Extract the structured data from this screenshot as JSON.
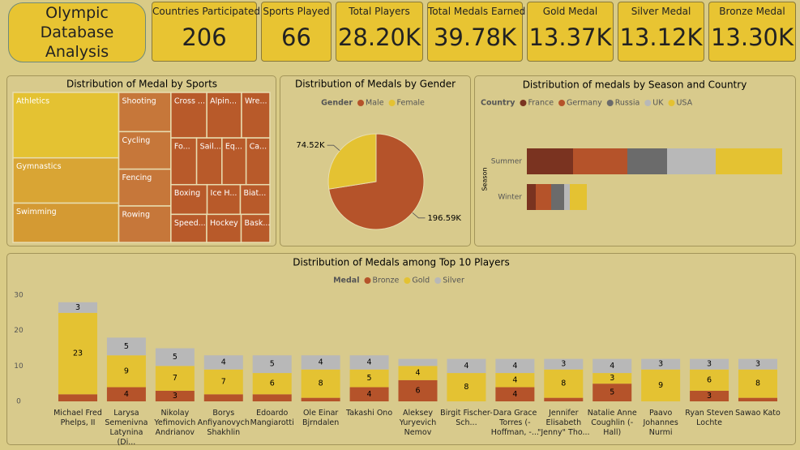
{
  "title": "Olympic Database Analysis",
  "cards": [
    {
      "label": "Countries Participated",
      "value": "206"
    },
    {
      "label": "Sports Played",
      "value": "66"
    },
    {
      "label": "Total Players",
      "value": "28.20K"
    },
    {
      "label": "Total Medals Earned",
      "value": "39.78K"
    },
    {
      "label": "Gold Medal",
      "value": "13.37K"
    },
    {
      "label": "Silver Medal",
      "value": "13.12K"
    },
    {
      "label": "Bronze Medal",
      "value": "13.30K"
    }
  ],
  "chart_data": [
    {
      "type": "treemap",
      "title": "Distribution of Medal by Sports",
      "color": "#b85a2a",
      "categories": [
        "Athletics",
        "Gymnastics",
        "Swimming",
        "Shooting",
        "Cycling",
        "Fencing",
        "Rowing",
        "Cross ...",
        "Alpin...",
        "Wre...",
        "Fo...",
        "Sail...",
        "Eq...",
        "Ca...",
        "Boxing",
        "Ice H...",
        "Biat...",
        "Speed...",
        "Hockey",
        "Bask..."
      ],
      "values": [
        38600,
        26700,
        23200,
        11400,
        10900,
        10700,
        10600,
        9100,
        8800,
        7200,
        6700,
        6600,
        6300,
        6200,
        6000,
        5500,
        4900,
        5600,
        5400,
        4500
      ],
      "colors": [
        "#e4c232",
        "#d9a534",
        "#d49a33",
        "#c6773a",
        "#c6773a",
        "#c6773a",
        "#c6773a",
        "#b85a2a",
        "#b85a2a",
        "#b85a2a",
        "#b85a2a",
        "#b85a2a",
        "#b85a2a",
        "#b85a2a",
        "#b85a2a",
        "#b85a2a",
        "#b85a2a",
        "#b85a2a",
        "#b85a2a",
        "#b85a2a"
      ]
    },
    {
      "type": "pie",
      "title": "Distribution of Medals by Gender",
      "legend_title": "Gender",
      "categories": [
        "Male",
        "Female"
      ],
      "values": [
        196590,
        74520
      ],
      "value_labels": [
        "196.59K",
        "74.52K"
      ],
      "colors": [
        "#b5532a",
        "#e4c232"
      ]
    },
    {
      "type": "hbar_stacked",
      "title": "Distribution of medals by Season and Country",
      "legend_title": "Country",
      "y_label": "Season",
      "categories": [
        "Summer",
        "Winter"
      ],
      "series": [
        {
          "name": "France",
          "color": "#7a3320",
          "values": [
            5700,
            1100
          ]
        },
        {
          "name": "Germany",
          "color": "#b5532a",
          "values": [
            6700,
            1900
          ]
        },
        {
          "name": "Russia",
          "color": "#6b6b6b",
          "values": [
            4900,
            1600
          ]
        },
        {
          "name": "UK",
          "color": "#b8b8b8",
          "values": [
            6000,
            700
          ]
        },
        {
          "name": "USA",
          "color": "#e4c232",
          "values": [
            8200,
            2100
          ]
        }
      ]
    },
    {
      "type": "bar_stacked",
      "title": "Distribution of Medals among Top 10 Players",
      "legend_title": "Medal",
      "categories": [
        "Michael Fred Phelps, II",
        "Larysa Semenivna Latynina (Di...",
        "Nikolay Yefimovich Andrianov",
        "Borys Anfiyanovych Shakhlin",
        "Edoardo Mangiarotti",
        "Ole Einar Bjrndalen",
        "Takashi Ono",
        "Aleksey Yuryevich Nemov",
        "Birgit Fischer-Sch...",
        "Dara Grace Torres (-Hoffman, -...",
        "Jennifer Elisabeth \"Jenny\" Tho...",
        "Natalie Anne Coughlin (-Hall)",
        "Paavo Johannes Nurmi",
        "Ryan Steven Lochte",
        "Sawao Kato"
      ],
      "series": [
        {
          "name": "Bronze",
          "color": "#b5532a",
          "values": [
            2,
            4,
            3,
            2,
            2,
            1,
            4,
            6,
            0,
            4,
            1,
            5,
            0,
            3,
            1
          ]
        },
        {
          "name": "Gold",
          "color": "#e4c232",
          "values": [
            23,
            9,
            7,
            7,
            6,
            8,
            5,
            4,
            8,
            4,
            8,
            3,
            9,
            6,
            8
          ]
        },
        {
          "name": "Silver",
          "color": "#b8b8b8",
          "values": [
            3,
            5,
            5,
            4,
            5,
            4,
            4,
            2,
            4,
            4,
            3,
            4,
            3,
            3,
            3
          ]
        }
      ],
      "ylim": [
        0,
        32
      ],
      "yticks": [
        0,
        10,
        20,
        30
      ]
    }
  ]
}
